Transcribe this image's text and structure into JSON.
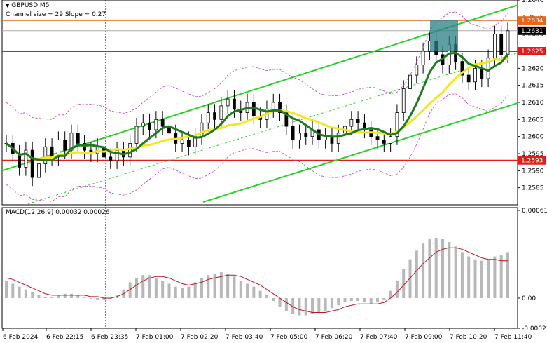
{
  "header": {
    "symbol": "GBPUSD,M5",
    "channel_info": "Channel size = 29 Slope = 0.27",
    "macd_label": "MACD(12,26,9) 0.00032 0.00026"
  },
  "chart_data": {
    "type": "candlestick",
    "ylim": [
      1.258,
      1.264
    ],
    "y_ticks": [
      "1.2640",
      "1.2635",
      "1.2630",
      "1.2625",
      "1.2620",
      "1.2615",
      "1.2610",
      "1.2605",
      "1.2600",
      "1.2595",
      "1.2590",
      "1.2585"
    ],
    "x_ticks": [
      "6 Feb 2024",
      "6 Feb 22:15",
      "6 Feb 23:35",
      "7 Feb 01:00",
      "7 Feb 02:20",
      "7 Feb 03:40",
      "7 Feb 05:00",
      "7 Feb 06:20",
      "7 Feb 07:40",
      "7 Feb 09:00",
      "7 Feb 10:20",
      "7 Feb 11:40"
    ],
    "price_markers": [
      {
        "label": "1.2634",
        "value": 1.2634,
        "color": "#e8651c"
      },
      {
        "label": "1.2631",
        "value": 1.2631,
        "color": "#000000"
      },
      {
        "label": "1.2625",
        "value": 1.2625,
        "color": "#e21b1b"
      },
      {
        "label": "1.2593",
        "value": 1.2593,
        "color": "#e21b1b"
      }
    ],
    "horizontal_levels": [
      1.2625,
      1.2593
    ],
    "close_series": [
      1.2598,
      1.2595,
      1.2591,
      1.2596,
      1.2588,
      1.2592,
      1.2597,
      1.2594,
      1.2599,
      1.2596,
      1.2601,
      1.2598,
      1.2596,
      1.2595,
      1.2597,
      1.2594,
      1.2593,
      1.2596,
      1.2594,
      1.2598,
      1.2603,
      1.2604,
      1.2602,
      1.2605,
      1.2603,
      1.2601,
      1.2598,
      1.2599,
      1.2597,
      1.26,
      1.2604,
      1.2607,
      1.2605,
      1.2609,
      1.2611,
      1.2608,
      1.2607,
      1.261,
      1.2606,
      1.2605,
      1.2608,
      1.261,
      1.2607,
      1.2603,
      1.2599,
      1.2601,
      1.26,
      1.2602,
      1.2599,
      1.26,
      1.2598,
      1.2601,
      1.2603,
      1.2605,
      1.2604,
      1.2602,
      1.26,
      1.2599,
      1.2598,
      1.26,
      1.2607,
      1.2614,
      1.2618,
      1.2621,
      1.2625,
      1.2628,
      1.2624,
      1.2621,
      1.2627,
      1.2622,
      1.2618,
      1.2616,
      1.262,
      1.2617,
      1.2623,
      1.263,
      1.2624,
      1.2631
    ],
    "series": [
      {
        "name": "MA green",
        "color": "#1f7a1f"
      },
      {
        "name": "MA yellow",
        "color": "#f2e81b"
      }
    ],
    "channel": {
      "color": "#2bd12b",
      "slope": 0.27,
      "size": 29
    },
    "highlight_box": {
      "color": "#2a7f86"
    },
    "macd": {
      "label": "MACD(12,26,9) 0.00032 0.00026",
      "ylim": [
        -0.00021,
        0.00061
      ],
      "y_ticks": [
        "0.00061",
        "0.00",
        "-0.00021"
      ],
      "histogram": [
        0.00012,
        0.0001,
        8e-05,
        6e-05,
        4e-05,
        2e-05,
        1e-05,
        1e-05,
        2e-05,
        3e-05,
        3e-05,
        2e-05,
        1e-05,
        0.0,
        -1e-05,
        -1e-05,
        0.0,
        2e-05,
        6e-05,
        0.00011,
        0.00014,
        0.00016,
        0.00016,
        0.00014,
        0.00012,
        0.0001,
        8e-05,
        7e-05,
        8e-05,
        0.00011,
        0.00014,
        0.00016,
        0.00017,
        0.00018,
        0.00017,
        0.00015,
        0.00012,
        0.0001,
        8e-05,
        5e-05,
        2e-05,
        -2e-05,
        -6e-05,
        -9e-05,
        -0.00011,
        -0.00012,
        -0.00012,
        -0.00011,
        -0.0001,
        -9e-05,
        -7e-05,
        -5e-05,
        -3e-05,
        -2e-05,
        -2e-05,
        -3e-05,
        -4e-05,
        -3e-05,
        -1e-05,
        5e-05,
        0.00012,
        0.0002,
        0.00027,
        0.00033,
        0.00038,
        0.00041,
        0.00042,
        0.00041,
        0.00039,
        0.00036,
        0.00032,
        0.00029,
        0.00027,
        0.00026,
        0.00027,
        0.00029,
        0.0003,
        0.00032
      ],
      "signal": [
        0.00014,
        0.00013,
        0.00011,
        9e-05,
        7e-05,
        5e-05,
        3e-05,
        2e-05,
        2e-05,
        2e-05,
        2e-05,
        2e-05,
        2e-05,
        1e-05,
        1e-05,
        0.0,
        0.0,
        1e-05,
        3e-05,
        6e-05,
        9e-05,
        0.00012,
        0.00014,
        0.00015,
        0.00015,
        0.00014,
        0.00012,
        0.0001,
        9e-05,
        0.0001,
        0.00011,
        0.00013,
        0.00014,
        0.00015,
        0.00016,
        0.00016,
        0.00015,
        0.00013,
        0.00011,
        9e-05,
        6e-05,
        3e-05,
        0.0,
        -3e-05,
        -6e-05,
        -8e-05,
        -9e-05,
        -0.0001,
        -0.0001,
        -0.0001,
        -9e-05,
        -8e-05,
        -6e-05,
        -5e-05,
        -4e-05,
        -4e-05,
        -4e-05,
        -4e-05,
        -3e-05,
        0.0,
        4e-05,
        9e-05,
        0.00014,
        0.00019,
        0.00024,
        0.00028,
        0.00032,
        0.00034,
        0.00035,
        0.00035,
        0.00034,
        0.00032,
        0.0003,
        0.00028,
        0.00027,
        0.00027,
        0.00026,
        0.00026
      ],
      "histogram_color": "#b8b8b8",
      "signal_color": "#c0141e"
    }
  }
}
